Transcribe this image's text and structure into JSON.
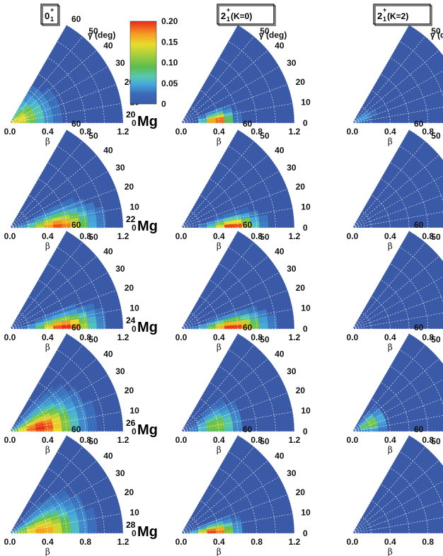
{
  "chart_data": {
    "type": "heatmap",
    "columns": [
      {
        "state": "0",
        "sup": "+",
        "sub": "1",
        "suffix": ""
      },
      {
        "state": "2",
        "sup": "+",
        "sub": "1",
        "suffix": " (K=0)"
      },
      {
        "state": "2",
        "sup": "+",
        "sub": "1",
        "suffix": " (K=2)"
      }
    ],
    "rows": [
      {
        "mass": "20",
        "element": "Mg"
      },
      {
        "mass": "22",
        "element": "Mg"
      },
      {
        "mass": "24",
        "element": "Mg"
      },
      {
        "mass": "26",
        "element": "Mg"
      },
      {
        "mass": "28",
        "element": "Mg"
      }
    ],
    "beta_ticks": [
      "0.0",
      "0.4",
      "0.8",
      "1.2"
    ],
    "gamma_ticks": [
      "0",
      "10",
      "20",
      "30",
      "40",
      "50",
      "60"
    ],
    "gamma_label": "γ (deg)",
    "beta_label": "β",
    "beta_range": [
      0,
      1.2
    ],
    "gamma_range": [
      0,
      60
    ],
    "colorbar": {
      "ticks": [
        "0.20",
        "0.15",
        "0.10",
        "0.05",
        "0"
      ],
      "range": [
        0,
        0.2
      ],
      "colors": [
        "#3a5aa8",
        "#46a8dc",
        "#58c8b0",
        "#5cbd4d",
        "#a9cf3c",
        "#e8dc2c",
        "#f59a22",
        "#e82a1a"
      ]
    },
    "grid": true,
    "panels": [
      [
        {
          "beta": 0.04,
          "gamma": 20,
          "peak": 0.16,
          "sb": 0.22,
          "sg": 30
        },
        {
          "beta": 0.38,
          "gamma": 4,
          "peak": 0.2,
          "sb": 0.1,
          "sg": 8
        },
        {
          "beta": 0.08,
          "gamma": 25,
          "peak": 0.05,
          "sb": 0.1,
          "sg": 12
        }
      ],
      [
        {
          "beta": 0.52,
          "gamma": 2,
          "peak": 0.19,
          "sb": 0.22,
          "sg": 10
        },
        {
          "beta": 0.55,
          "gamma": 2,
          "peak": 0.2,
          "sb": 0.16,
          "sg": 6
        },
        {
          "beta": 0.3,
          "gamma": 10,
          "peak": 0.0,
          "sb": 0.1,
          "sg": 10
        }
      ],
      [
        {
          "beta": 0.58,
          "gamma": 2,
          "peak": 0.2,
          "sb": 0.2,
          "sg": 8
        },
        {
          "beta": 0.55,
          "gamma": 2,
          "peak": 0.2,
          "sb": 0.2,
          "sg": 7
        },
        {
          "beta": 0.3,
          "gamma": 10,
          "peak": 0.0,
          "sb": 0.1,
          "sg": 10
        }
      ],
      [
        {
          "beta": 0.33,
          "gamma": 8,
          "peak": 0.2,
          "sb": 0.24,
          "sg": 18
        },
        {
          "beta": 0.38,
          "gamma": 10,
          "peak": 0.11,
          "sb": 0.14,
          "sg": 14
        },
        {
          "beta": 0.2,
          "gamma": 24,
          "peak": 0.11,
          "sb": 0.1,
          "sg": 14
        }
      ],
      [
        {
          "beta": 0.35,
          "gamma": 5,
          "peak": 0.17,
          "sb": 0.24,
          "sg": 18
        },
        {
          "beta": 0.35,
          "gamma": 3,
          "peak": 0.2,
          "sb": 0.14,
          "sg": 8
        },
        {
          "beta": 0.3,
          "gamma": 10,
          "peak": 0.0,
          "sb": 0.1,
          "sg": 10
        }
      ]
    ]
  }
}
